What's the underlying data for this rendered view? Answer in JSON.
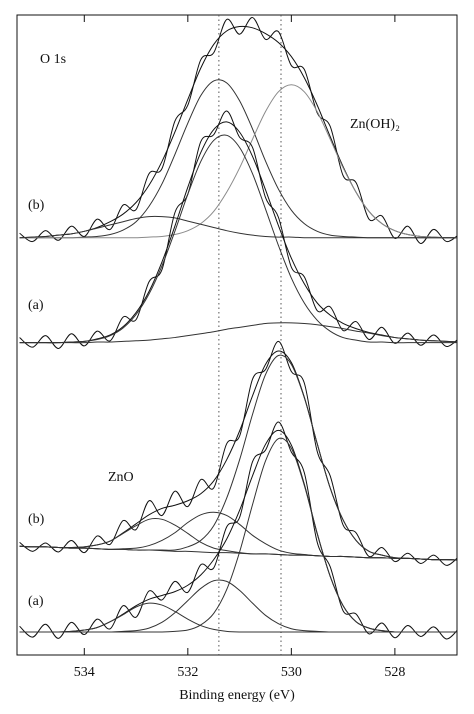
{
  "chart_data": {
    "type": "line",
    "x_label": "Binding energy (eV)",
    "annotations": [
      "O 1s",
      "Zn(OH)₂",
      "ZnO"
    ],
    "trace_labels": [
      "(b)",
      "(a)",
      "(b)",
      "(a)"
    ],
    "xlim": [
      535.3,
      526.8
    ],
    "ylim": [
      0,
      100
    ],
    "xticks": [
      534,
      532,
      530,
      528
    ],
    "vlines": [
      531.4,
      530.2
    ],
    "x": [
      535.25,
      535.0,
      534.75,
      534.5,
      534.25,
      534.0,
      533.75,
      533.5,
      533.25,
      533.0,
      532.75,
      532.5,
      532.25,
      532.0,
      531.75,
      531.5,
      531.25,
      531.0,
      530.75,
      530.5,
      530.25,
      530.0,
      529.75,
      529.5,
      529.25,
      529.0,
      528.75,
      528.5,
      528.25,
      528.0,
      527.75,
      527.5,
      527.25,
      527.0,
      526.75
    ],
    "series": [
      {
        "color": "#111111",
        "values": [
          65.9,
          64.6,
          66.3,
          64.8,
          67.0,
          65.4,
          68.1,
          66.5,
          70.3,
          69.6,
          75.2,
          76.0,
          83.4,
          85.9,
          93.0,
          94.1,
          99.3,
          97.0,
          99.6,
          96.2,
          97.4,
          92.1,
          91.5,
          84.7,
          82.6,
          74.9,
          73.8,
          68.1,
          68.6,
          65.1,
          67.0,
          64.3,
          66.5,
          64.6,
          65.8
        ]
      },
      {
        "color": "#111111",
        "values": [
          65.2,
          65.3,
          65.4,
          65.6,
          65.8,
          66.2,
          66.8,
          67.7,
          68.9,
          70.7,
          73.4,
          77.1,
          81.7,
          86.8,
          91.7,
          95.4,
          97.5,
          98.2,
          98.0,
          97.1,
          95.7,
          93.5,
          90.2,
          85.9,
          81.0,
          76.3,
          72.3,
          69.3,
          67.4,
          66.3,
          65.7,
          65.4,
          65.3,
          65.2,
          65.2
        ]
      },
      {
        "color": "#333333",
        "values": [
          65.2,
          65.2,
          65.2,
          65.2,
          65.2,
          65.3,
          65.4,
          65.7,
          66.4,
          67.7,
          70.1,
          73.6,
          78.2,
          83.1,
          87.4,
          89.7,
          89.4,
          86.6,
          82.2,
          77.2,
          72.8,
          69.5,
          67.4,
          66.2,
          65.6,
          65.4,
          65.3,
          65.2,
          65.2,
          65.2,
          65.2,
          65.2,
          65.2,
          65.2,
          65.2
        ]
      },
      {
        "color": "#8a8a8a",
        "values": [
          65.2,
          65.2,
          65.2,
          65.2,
          65.2,
          65.2,
          65.2,
          65.2,
          65.2,
          65.2,
          65.3,
          65.4,
          65.7,
          66.3,
          67.4,
          69.3,
          72.3,
          76.1,
          80.6,
          84.9,
          88.0,
          89.1,
          88.0,
          84.9,
          80.6,
          76.1,
          72.3,
          69.3,
          67.4,
          66.3,
          65.7,
          65.4,
          65.3,
          65.2,
          65.2
        ]
      },
      {
        "color": "#333333",
        "values": [
          65.2,
          65.3,
          65.4,
          65.6,
          65.8,
          66.2,
          66.7,
          67.2,
          67.7,
          68.2,
          68.5,
          68.5,
          68.3,
          67.8,
          67.3,
          66.8,
          66.3,
          65.9,
          65.6,
          65.4,
          65.3,
          65.3,
          65.2,
          65.2,
          65.2,
          65.2,
          65.2,
          65.2,
          65.2,
          65.2,
          65.2,
          65.2,
          65.2,
          65.2,
          65.2
        ]
      },
      {
        "color": "#111111",
        "values": [
          49.6,
          48.1,
          49.9,
          47.9,
          50.2,
          48.3,
          50.6,
          49.1,
          52.8,
          52.4,
          58.3,
          60.2,
          69.1,
          72.0,
          80.2,
          81.3,
          85.0,
          80.9,
          79.3,
          71.5,
          68.4,
          60.6,
          59.1,
          53.8,
          54.4,
          50.7,
          52.1,
          49.3,
          51.2,
          48.7,
          50.3,
          48.4,
          50.0,
          48.2,
          49.6
        ]
      },
      {
        "color": "#111111",
        "values": [
          48.8,
          48.8,
          48.8,
          48.8,
          48.9,
          49.0,
          49.4,
          50.0,
          51.3,
          53.5,
          56.8,
          61.4,
          67.0,
          73.1,
          78.5,
          82.1,
          83.3,
          81.7,
          77.9,
          72.7,
          67.1,
          62.0,
          58.0,
          55.0,
          53.1,
          51.8,
          51.0,
          50.4,
          50.0,
          49.6,
          49.4,
          49.2,
          49.1,
          49.0,
          48.9
        ]
      },
      {
        "color": "#333333",
        "values": [
          48.8,
          48.8,
          48.8,
          48.8,
          48.9,
          49.0,
          49.3,
          49.9,
          51.1,
          53.2,
          56.4,
          60.8,
          66.2,
          72.0,
          77.1,
          80.4,
          81.2,
          79.3,
          75.2,
          69.7,
          64.0,
          58.9,
          55.0,
          52.3,
          50.6,
          49.6,
          49.2,
          48.9,
          48.9,
          48.8,
          48.8,
          48.8,
          48.8,
          48.8,
          48.8
        ]
      },
      {
        "color": "#333333",
        "values": [
          48.8,
          48.8,
          48.8,
          48.8,
          48.8,
          48.8,
          48.9,
          48.9,
          49.0,
          49.1,
          49.2,
          49.4,
          49.6,
          49.9,
          50.2,
          50.5,
          50.9,
          51.2,
          51.5,
          51.8,
          51.9,
          51.9,
          51.8,
          51.6,
          51.3,
          51.0,
          50.6,
          50.3,
          49.9,
          49.6,
          49.4,
          49.2,
          49.1,
          49.0,
          48.9
        ]
      },
      {
        "color": "#111111",
        "values": [
          17.6,
          16.2,
          17.5,
          16.1,
          17.9,
          16.0,
          18.6,
          17.3,
          21.0,
          19.6,
          24.1,
          21.8,
          25.6,
          23.2,
          27.4,
          26.1,
          33.0,
          34.2,
          43.1,
          44.6,
          49.0,
          44.3,
          42.5,
          31.8,
          28.0,
          20.3,
          19.1,
          15.4,
          16.8,
          14.6,
          15.9,
          14.3,
          15.6,
          14.0,
          15.5
        ]
      },
      {
        "color": "#111111",
        "values": [
          17.0,
          16.9,
          16.9,
          16.8,
          16.8,
          16.9,
          17.2,
          17.8,
          19.1,
          20.5,
          21.9,
          22.9,
          23.4,
          24.1,
          25.2,
          27.2,
          30.5,
          35.0,
          40.5,
          45.4,
          47.5,
          45.7,
          40.3,
          33.0,
          26.1,
          21.1,
          17.9,
          16.2,
          15.6,
          15.2,
          15.1,
          15.0,
          14.9,
          14.9,
          14.8
        ]
      },
      {
        "color": "#333333",
        "values": [
          17.0,
          16.9,
          16.9,
          16.8,
          16.7,
          16.7,
          16.6,
          16.5,
          16.5,
          16.4,
          16.4,
          16.4,
          16.4,
          16.9,
          17.9,
          20.2,
          24.5,
          30.5,
          37.6,
          43.8,
          46.8,
          45.4,
          40.2,
          33.0,
          26.1,
          21.1,
          17.9,
          16.2,
          15.6,
          15.2,
          15.1,
          15.0,
          14.9,
          14.9,
          14.8
        ]
      },
      {
        "color": "#333333",
        "values": [
          17.0,
          16.9,
          16.9,
          16.8,
          16.7,
          16.7,
          16.6,
          16.5,
          16.6,
          16.7,
          17.1,
          17.9,
          19.1,
          20.7,
          21.9,
          22.3,
          21.8,
          20.4,
          18.7,
          17.4,
          16.4,
          15.9,
          15.7,
          15.5,
          15.4,
          15.4,
          15.3,
          15.2,
          15.2,
          15.1,
          15.1,
          15.0,
          14.9,
          14.9,
          14.8
        ]
      },
      {
        "color": "#333333",
        "values": [
          17.0,
          16.9,
          16.9,
          16.8,
          16.8,
          16.9,
          17.2,
          17.8,
          19.0,
          20.2,
          21.2,
          21.2,
          20.3,
          19.0,
          17.6,
          16.7,
          16.3,
          16.0,
          15.8,
          15.8,
          15.7,
          15.6,
          15.6,
          15.5,
          15.4,
          15.4,
          15.3,
          15.2,
          15.2,
          15.1,
          15.1,
          15.0,
          14.9,
          14.9,
          14.8
        ]
      },
      {
        "color": "#333333",
        "values": [
          17.0,
          16.9,
          16.9,
          16.8,
          16.7,
          16.7,
          16.6,
          16.5,
          16.5,
          16.4,
          16.4,
          16.3,
          16.2,
          16.2,
          16.1,
          16.0,
          16.0,
          15.9,
          15.8,
          15.8,
          15.7,
          15.6,
          15.6,
          15.5,
          15.4,
          15.4,
          15.3,
          15.2,
          15.2,
          15.1,
          15.1,
          15.0,
          14.9,
          14.9,
          14.8
        ]
      },
      {
        "color": "#111111",
        "values": [
          4.5,
          2.8,
          4.8,
          2.6,
          5.1,
          3.2,
          5.6,
          4.1,
          7.7,
          5.9,
          10.0,
          8.6,
          11.5,
          9.8,
          14.1,
          13.6,
          20.0,
          21.5,
          30.2,
          32.0,
          36.4,
          31.7,
          28.5,
          17.6,
          13.8,
          6.9,
          6.4,
          3.3,
          5.0,
          2.7,
          4.6,
          2.9,
          4.4,
          2.5,
          4.3
        ]
      },
      {
        "color": "#111111",
        "values": [
          3.6,
          3.6,
          3.6,
          3.6,
          3.7,
          3.9,
          4.3,
          5.2,
          6.4,
          7.7,
          8.7,
          9.3,
          9.9,
          10.9,
          12.5,
          14.9,
          18.1,
          22.6,
          28.0,
          32.9,
          35.1,
          32.8,
          26.7,
          19.0,
          12.3,
          7.7,
          5.2,
          4.2,
          3.8,
          3.6,
          3.6,
          3.6,
          3.6,
          3.6,
          3.6
        ]
      },
      {
        "color": "#333333",
        "values": [
          3.6,
          3.6,
          3.6,
          3.6,
          3.6,
          3.6,
          3.6,
          3.6,
          3.6,
          3.6,
          3.6,
          3.6,
          3.7,
          3.9,
          4.7,
          6.5,
          10.2,
          16.1,
          23.5,
          30.3,
          33.8,
          32.3,
          26.5,
          18.9,
          12.3,
          7.7,
          5.2,
          4.2,
          3.8,
          3.6,
          3.6,
          3.6,
          3.6,
          3.6,
          3.6
        ]
      },
      {
        "color": "#333333",
        "values": [
          3.6,
          3.6,
          3.6,
          3.6,
          3.6,
          3.6,
          3.6,
          3.6,
          3.7,
          3.8,
          4.2,
          5.1,
          6.6,
          8.5,
          10.4,
          11.6,
          11.5,
          10.1,
          8.1,
          6.2,
          4.9,
          4.1,
          3.8,
          3.7,
          3.6,
          3.6,
          3.6,
          3.6,
          3.6,
          3.6,
          3.6,
          3.6,
          3.6,
          3.6,
          3.6
        ]
      },
      {
        "color": "#333333",
        "values": [
          3.6,
          3.6,
          3.6,
          3.6,
          3.7,
          3.9,
          4.3,
          5.2,
          6.3,
          7.5,
          8.1,
          7.8,
          6.8,
          5.6,
          4.6,
          4.0,
          3.7,
          3.6,
          3.6,
          3.6,
          3.6,
          3.6,
          3.6,
          3.6,
          3.6,
          3.6,
          3.6,
          3.6,
          3.6,
          3.6,
          3.6,
          3.6,
          3.6,
          3.6,
          3.6
        ]
      }
    ]
  }
}
